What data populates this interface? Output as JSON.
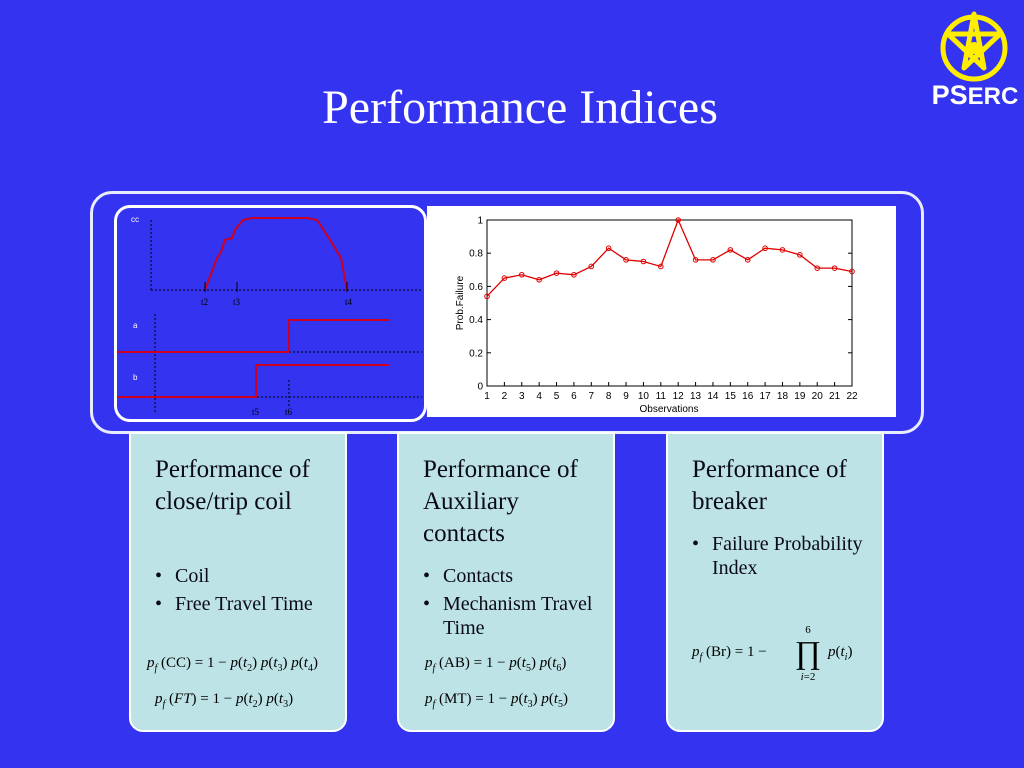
{
  "title": "Performance Indices",
  "logo": {
    "letters_big": "PS",
    "letters_small": "ERC"
  },
  "timing_diagram": {
    "labels": {
      "cc": "cc",
      "a": "a",
      "b": "b"
    },
    "ticks": [
      "t2",
      "t3",
      "t4",
      "t5",
      "t6"
    ]
  },
  "chart_data": {
    "type": "line",
    "x": [
      1,
      2,
      3,
      4,
      5,
      6,
      7,
      8,
      9,
      10,
      11,
      12,
      13,
      14,
      15,
      16,
      17,
      18,
      19,
      20,
      21,
      22
    ],
    "series": [
      {
        "name": "",
        "values": [
          0.54,
          0.65,
          0.67,
          0.64,
          0.68,
          0.67,
          0.72,
          0.83,
          0.76,
          0.75,
          0.72,
          1.0,
          0.76,
          0.76,
          0.82,
          0.76,
          0.83,
          0.82,
          0.79,
          0.71,
          0.71,
          0.69
        ],
        "color": "#e00000"
      }
    ],
    "xlabel": "Observations",
    "ylabel": "Prob.Failure",
    "xlim": [
      1,
      22
    ],
    "ylim": [
      0,
      1
    ],
    "yticks": [
      0,
      0.2,
      0.4,
      0.6,
      0.8,
      1
    ],
    "ytick_labels": [
      "0",
      "0.2",
      "0.4",
      "0.6",
      "0.8",
      "1"
    ],
    "grid": false
  },
  "cards": [
    {
      "heading": "Performance of close/trip coil",
      "bullets": [
        "Coil",
        "Free Travel Time"
      ],
      "formulas": [
        "p_f(CC) = 1 − p(t_2) p(t_3) p(t_4)",
        "p_f(FT) = 1 − p(t_2) p(t_3)"
      ]
    },
    {
      "heading": "Performance of Auxiliary contacts",
      "bullets": [
        "Contacts",
        "Mechanism Travel Time"
      ],
      "formulas": [
        "p_f(AB) = 1 − p(t_5) p(t_6)",
        "p_f(MT) = 1 − p(t_3) p(t_5)"
      ]
    },
    {
      "heading": "Performance of breaker",
      "bullets": [
        "Failure Probability Index"
      ],
      "formulas": [
        "p_f(Br) = 1 − ∏_{i=2}^{6} p(t_i)"
      ]
    }
  ],
  "colors": {
    "background": "#3333f0",
    "card": "#bde3e6",
    "series": "#e00000",
    "logo": "#ffee00"
  }
}
